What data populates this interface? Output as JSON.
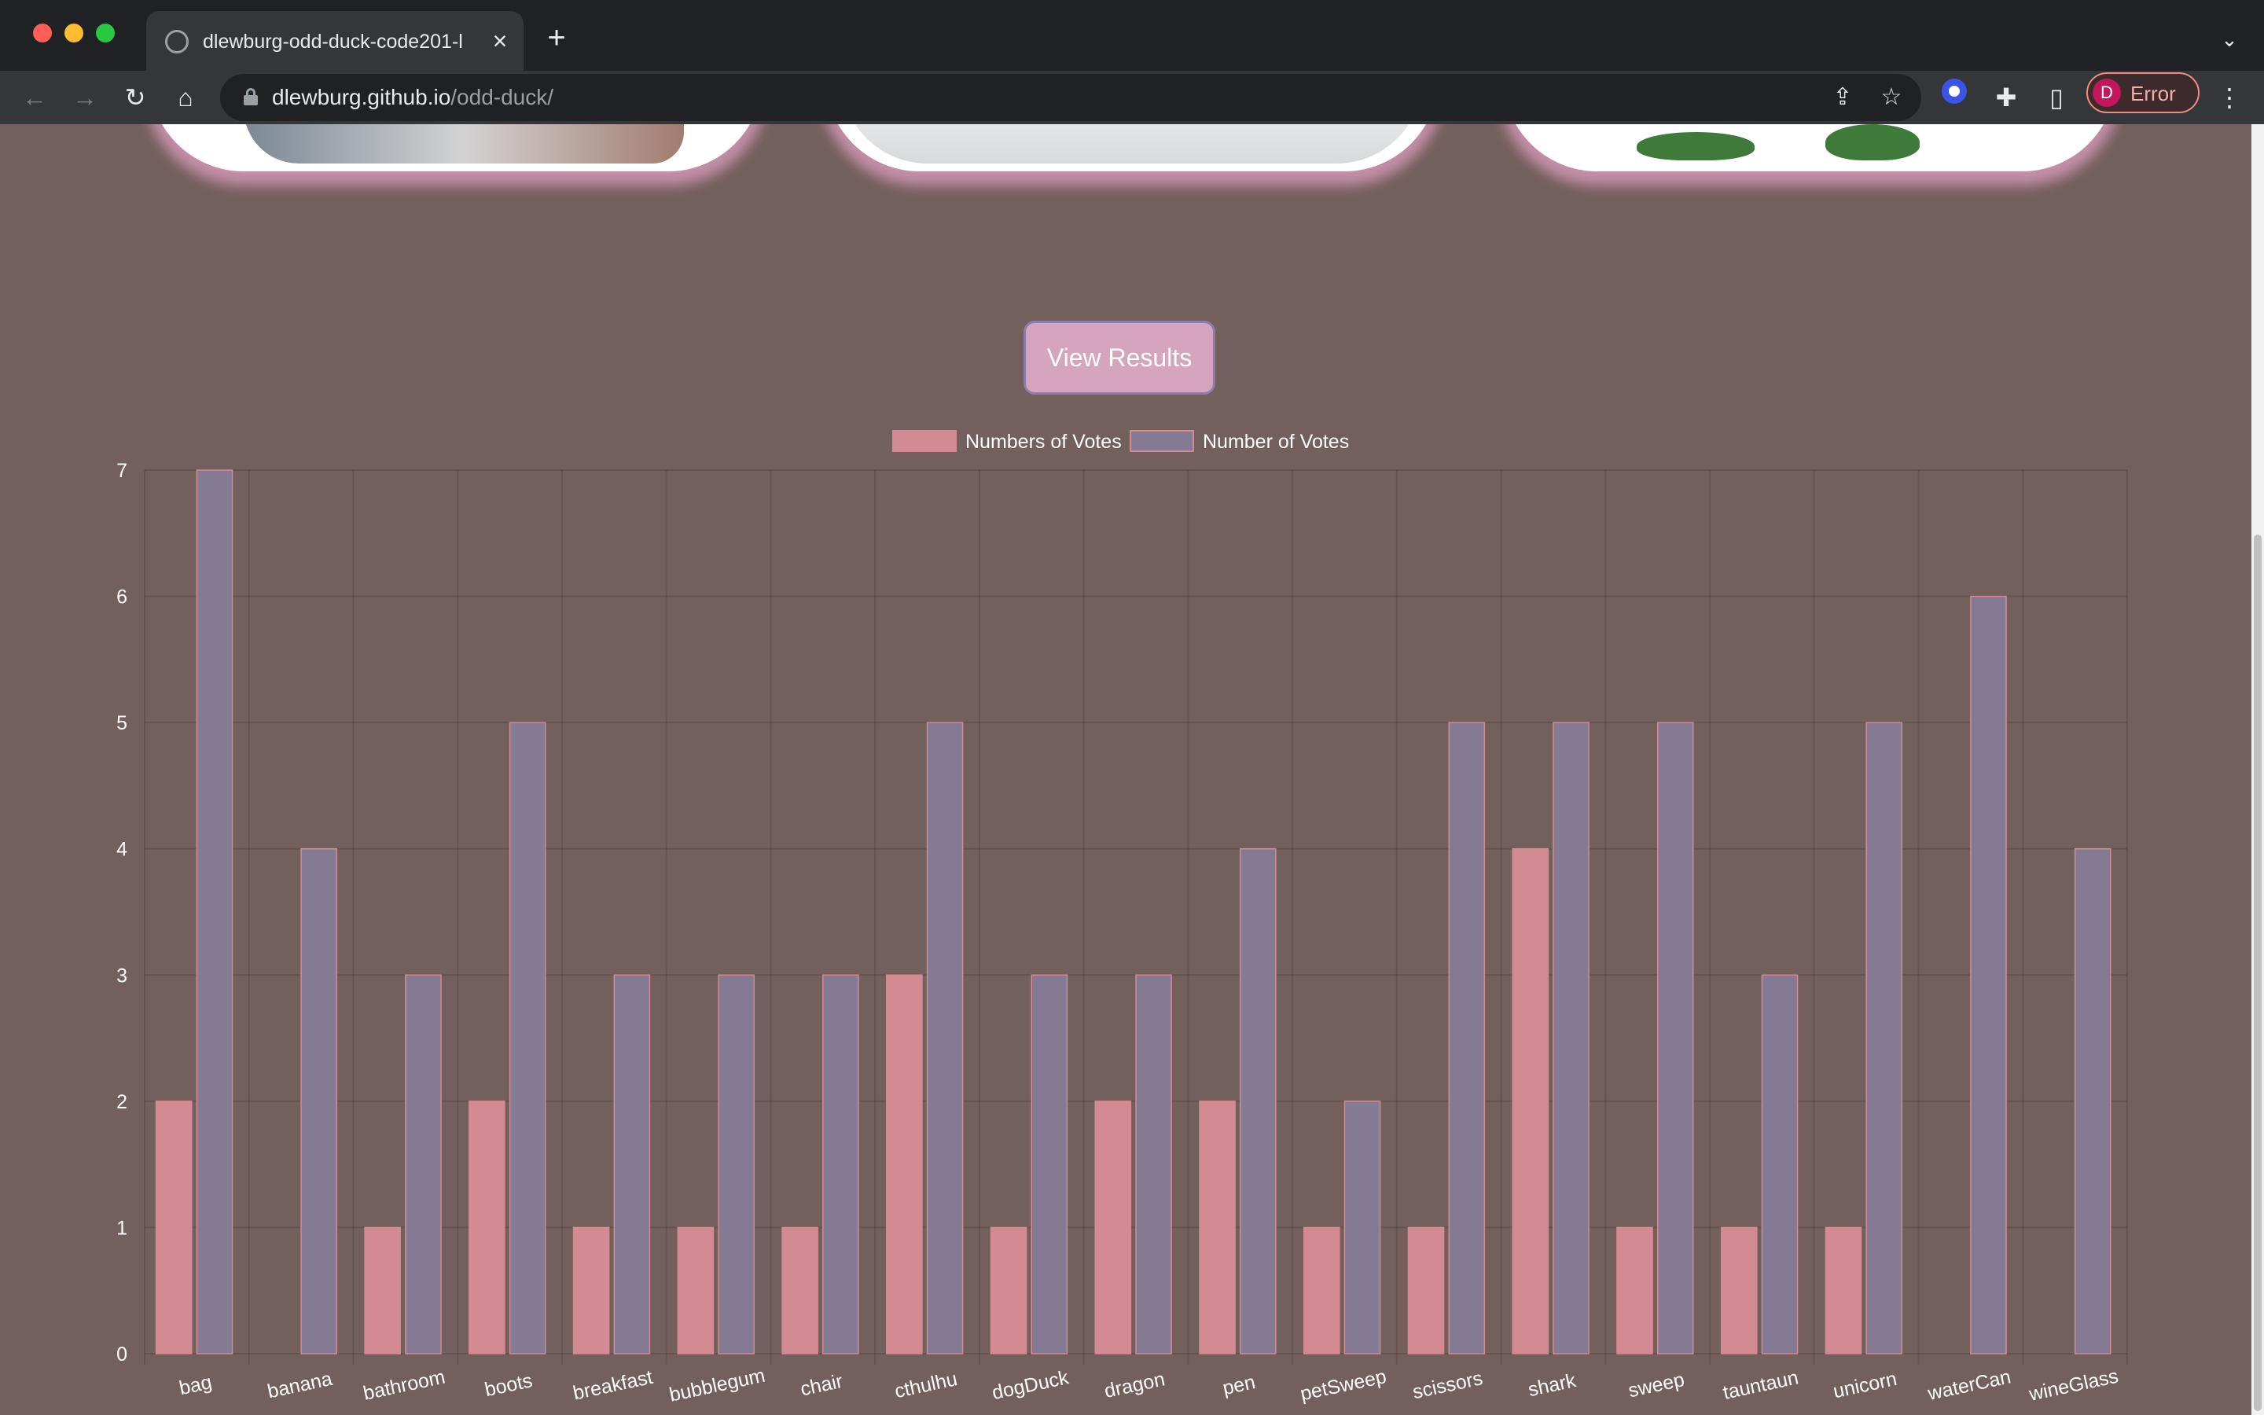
{
  "browser": {
    "tab_title": "dlewburg-odd-duck-code201-l",
    "url_host": "dlewburg.github.io",
    "url_path": "/odd-duck/",
    "profile_initial": "D",
    "profile_status": "Error"
  },
  "page": {
    "view_results_label": "View Results"
  },
  "colors": {
    "background": "#735f5c",
    "series_a": "#d48a93",
    "series_b": "#857a94",
    "button": "#d4a5bc"
  },
  "chart_data": {
    "type": "bar",
    "categories": [
      "bag",
      "banana",
      "bathroom",
      "boots",
      "breakfast",
      "bubblegum",
      "chair",
      "cthulhu",
      "dogDuck",
      "dragon",
      "pen",
      "petSweep",
      "scissors",
      "shark",
      "sweep",
      "tauntaun",
      "unicorn",
      "waterCan",
      "wineGlass"
    ],
    "series": [
      {
        "name": "Numbers of Votes",
        "values": [
          2,
          0,
          1,
          2,
          1,
          1,
          1,
          3,
          1,
          2,
          2,
          1,
          1,
          4,
          1,
          1,
          1,
          0,
          0
        ]
      },
      {
        "name": "Number of Votes",
        "values": [
          7,
          4,
          3,
          5,
          3,
          3,
          3,
          5,
          3,
          3,
          4,
          2,
          5,
          5,
          5,
          3,
          5,
          6,
          4
        ]
      }
    ],
    "ylim": [
      0,
      7
    ],
    "yticks": [
      0,
      1,
      2,
      3,
      4,
      5,
      6,
      7
    ],
    "grid": true,
    "legend": "top-center"
  }
}
